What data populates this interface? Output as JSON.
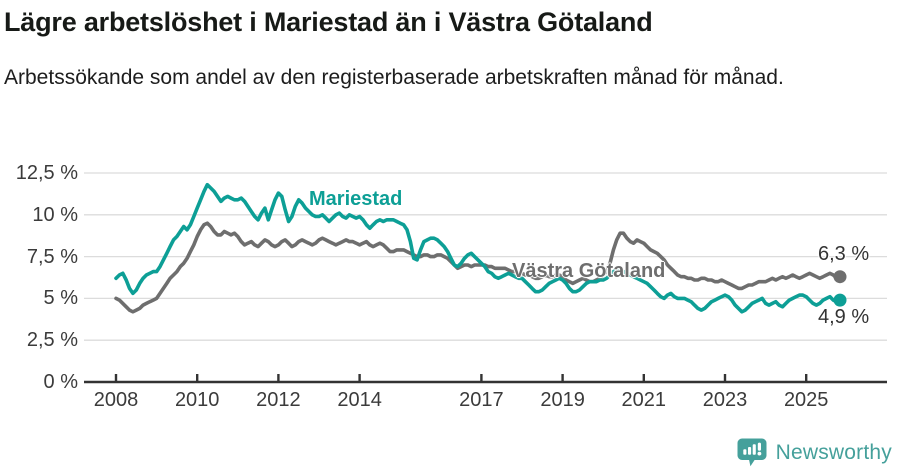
{
  "header": {
    "title": "Lägre arbetslöshet i Mariestad än i Västra Götaland",
    "subtitle": "Arbetssökande som andel av den registerbaserade arbetskraften månad för månad."
  },
  "chart_data": {
    "type": "line",
    "title": "Lägre arbetslöshet i Mariestad än i Västra Götaland",
    "unit": "%",
    "grid": true,
    "legend_position": "inline-labels-on-lines",
    "x_start": "2008-01",
    "x_end": "2025-11",
    "x_months_per_point": 1,
    "x_tick_years": [
      2008,
      2010,
      2012,
      2014,
      2017,
      2019,
      2021,
      2023,
      2025
    ],
    "x_tick_labels": [
      "2008",
      "2010",
      "2012",
      "2014",
      "2017",
      "2019",
      "2021",
      "2023",
      "2025"
    ],
    "y_tick_values": [
      0,
      2.5,
      5,
      7.5,
      10,
      12.5
    ],
    "y_tick_labels": [
      "0 %",
      "2,5 %",
      "5 %",
      "7,5 %",
      "10 %",
      "12,5 %"
    ],
    "ylim": [
      0,
      12.5
    ],
    "colors": {
      "axis": "#333333",
      "gridline": "#dcdcdc",
      "tick_text": "#3b3b3b"
    },
    "series": [
      {
        "name": "Mariestad",
        "color": "#0d9f96",
        "end_label": "4,9 %",
        "end_value": 4.9,
        "values": [
          6.2,
          6.4,
          6.5,
          6.1,
          5.6,
          5.3,
          5.5,
          5.9,
          6.2,
          6.4,
          6.5,
          6.6,
          6.6,
          6.9,
          7.3,
          7.7,
          8.1,
          8.5,
          8.7,
          9.0,
          9.3,
          9.1,
          9.4,
          9.9,
          10.4,
          10.9,
          11.4,
          11.8,
          11.6,
          11.4,
          11.1,
          10.8,
          11.0,
          11.1,
          11.0,
          10.9,
          10.9,
          11.0,
          10.8,
          10.5,
          10.2,
          9.9,
          9.7,
          10.1,
          10.4,
          9.7,
          10.3,
          10.9,
          11.3,
          11.1,
          10.3,
          9.6,
          9.9,
          10.5,
          10.9,
          10.7,
          10.4,
          10.2,
          10.0,
          9.9,
          9.9,
          10.0,
          9.8,
          9.6,
          9.8,
          10.0,
          10.1,
          9.9,
          9.8,
          10.0,
          9.9,
          9.8,
          9.9,
          9.7,
          9.4,
          9.2,
          9.4,
          9.6,
          9.7,
          9.6,
          9.7,
          9.7,
          9.7,
          9.6,
          9.5,
          9.4,
          9.1,
          8.4,
          7.4,
          7.3,
          7.9,
          8.4,
          8.5,
          8.6,
          8.6,
          8.5,
          8.3,
          8.1,
          7.8,
          7.4,
          7.0,
          6.9,
          7.1,
          7.4,
          7.6,
          7.7,
          7.5,
          7.3,
          7.1,
          6.9,
          6.6,
          6.5,
          6.3,
          6.2,
          6.3,
          6.4,
          6.5,
          6.4,
          6.3,
          6.2,
          6.2,
          6.0,
          5.8,
          5.6,
          5.4,
          5.4,
          5.5,
          5.7,
          5.9,
          6.0,
          6.1,
          6.2,
          6.1,
          5.9,
          5.6,
          5.4,
          5.4,
          5.5,
          5.7,
          5.9,
          6.0,
          6.0,
          6.0,
          6.1,
          6.1,
          6.2,
          6.4,
          6.6,
          6.7,
          6.7,
          6.6,
          6.5,
          6.4,
          6.3,
          6.2,
          6.1,
          6.0,
          5.9,
          5.7,
          5.5,
          5.3,
          5.1,
          5.0,
          5.2,
          5.3,
          5.1,
          5.0,
          5.0,
          5.0,
          4.9,
          4.8,
          4.6,
          4.4,
          4.3,
          4.4,
          4.6,
          4.8,
          4.9,
          5.0,
          5.1,
          5.2,
          5.1,
          4.9,
          4.6,
          4.4,
          4.2,
          4.3,
          4.5,
          4.7,
          4.8,
          4.9,
          5.0,
          4.7,
          4.6,
          4.7,
          4.8,
          4.6,
          4.5,
          4.7,
          4.9,
          5.0,
          5.1,
          5.2,
          5.2,
          5.1,
          4.9,
          4.7,
          4.6,
          4.7,
          4.9,
          5.0,
          5.1,
          4.9,
          4.8,
          4.9
        ]
      },
      {
        "name": "Västra Götaland",
        "color": "#6e6e6e",
        "end_label": "6,3 %",
        "end_value": 6.3,
        "values": [
          5.0,
          4.9,
          4.7,
          4.5,
          4.3,
          4.2,
          4.3,
          4.4,
          4.6,
          4.7,
          4.8,
          4.9,
          5.0,
          5.3,
          5.6,
          5.9,
          6.2,
          6.4,
          6.6,
          6.9,
          7.1,
          7.4,
          7.8,
          8.2,
          8.7,
          9.1,
          9.4,
          9.5,
          9.3,
          9.0,
          8.8,
          8.8,
          9.0,
          8.9,
          8.8,
          8.9,
          8.7,
          8.4,
          8.2,
          8.3,
          8.4,
          8.2,
          8.1,
          8.3,
          8.5,
          8.4,
          8.2,
          8.1,
          8.2,
          8.4,
          8.5,
          8.3,
          8.1,
          8.2,
          8.4,
          8.5,
          8.4,
          8.3,
          8.2,
          8.3,
          8.5,
          8.6,
          8.5,
          8.4,
          8.3,
          8.2,
          8.3,
          8.4,
          8.5,
          8.4,
          8.4,
          8.3,
          8.2,
          8.3,
          8.4,
          8.2,
          8.1,
          8.2,
          8.3,
          8.2,
          8.0,
          7.8,
          7.8,
          7.9,
          7.9,
          7.9,
          7.8,
          7.7,
          7.6,
          7.5,
          7.5,
          7.6,
          7.6,
          7.5,
          7.5,
          7.6,
          7.6,
          7.5,
          7.4,
          7.2,
          7.0,
          6.8,
          6.9,
          7.0,
          7.0,
          6.9,
          7.0,
          7.0,
          7.0,
          7.0,
          6.9,
          6.9,
          6.8,
          6.8,
          6.8,
          6.8,
          6.7,
          6.6,
          6.6,
          6.5,
          6.5,
          6.4,
          6.4,
          6.3,
          6.2,
          6.2,
          6.3,
          6.4,
          6.3,
          6.3,
          6.4,
          6.4,
          6.3,
          6.1,
          6.0,
          5.9,
          6.0,
          6.1,
          6.2,
          6.1,
          6.0,
          6.0,
          6.1,
          6.2,
          6.4,
          6.6,
          7.1,
          7.9,
          8.5,
          8.9,
          8.9,
          8.6,
          8.4,
          8.3,
          8.5,
          8.4,
          8.3,
          8.1,
          7.9,
          7.8,
          7.7,
          7.5,
          7.3,
          7.0,
          6.8,
          6.6,
          6.4,
          6.3,
          6.3,
          6.2,
          6.2,
          6.1,
          6.1,
          6.2,
          6.2,
          6.1,
          6.1,
          6.0,
          6.0,
          6.1,
          6.0,
          5.9,
          5.8,
          5.7,
          5.6,
          5.6,
          5.7,
          5.8,
          5.8,
          5.9,
          6.0,
          6.0,
          6.0,
          6.1,
          6.2,
          6.1,
          6.2,
          6.3,
          6.2,
          6.3,
          6.4,
          6.3,
          6.2,
          6.3,
          6.4,
          6.5,
          6.4,
          6.3,
          6.2,
          6.3,
          6.4,
          6.5,
          6.4,
          6.2,
          6.3
        ]
      }
    ]
  },
  "footer": {
    "brand": "Newsworthy",
    "brand_color": "#45a09b"
  }
}
